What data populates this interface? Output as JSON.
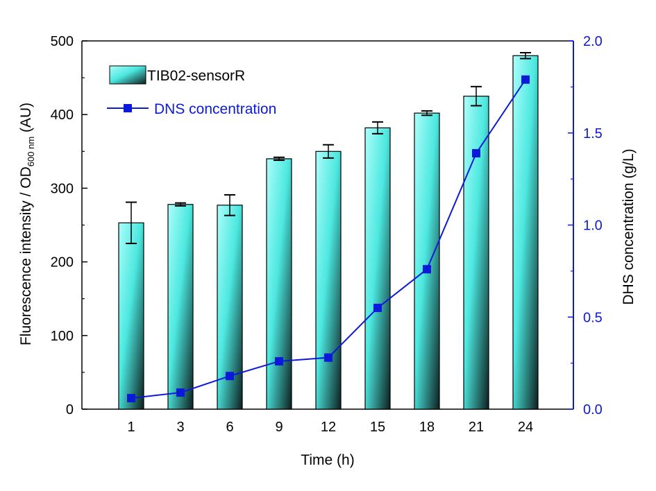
{
  "chart_data": {
    "type": "bar",
    "categories": [
      "1",
      "3",
      "6",
      "9",
      "12",
      "15",
      "18",
      "21",
      "24"
    ],
    "xlabel": "Time (h)",
    "ylabel": {
      "prefix": "Fluorescence intensity / OD",
      "subscript": "600 nm",
      "suffix": " (AU)"
    },
    "y2label": "DHS concentration (g/L)",
    "ylim": [
      0,
      500
    ],
    "yticks": [
      "0",
      "100",
      "200",
      "300",
      "400",
      "500"
    ],
    "y2lim": [
      0,
      2.0
    ],
    "y2ticks": [
      "0.0",
      "0.5",
      "1.0",
      "1.5",
      "2.0"
    ],
    "series": [
      {
        "name": "TIB02-sensorR",
        "kind": "bar",
        "axis": "left",
        "values": [
          253,
          278,
          277,
          340,
          350,
          382,
          402,
          425,
          480
        ],
        "errors": [
          28,
          2,
          14,
          2,
          9,
          8,
          3,
          13,
          4
        ]
      },
      {
        "name": "DNS concentration",
        "kind": "line",
        "axis": "right",
        "values": [
          0.06,
          0.09,
          0.18,
          0.26,
          0.28,
          0.55,
          0.76,
          1.39,
          1.79
        ]
      }
    ],
    "colors": {
      "bar_light": "#aefdfa",
      "bar_mid": "#4ce8e0",
      "bar_dark": "#0d1f1e",
      "line": "#0b1ad8",
      "axis_right": "#0b1ad8"
    },
    "legend_position": "top-left"
  }
}
